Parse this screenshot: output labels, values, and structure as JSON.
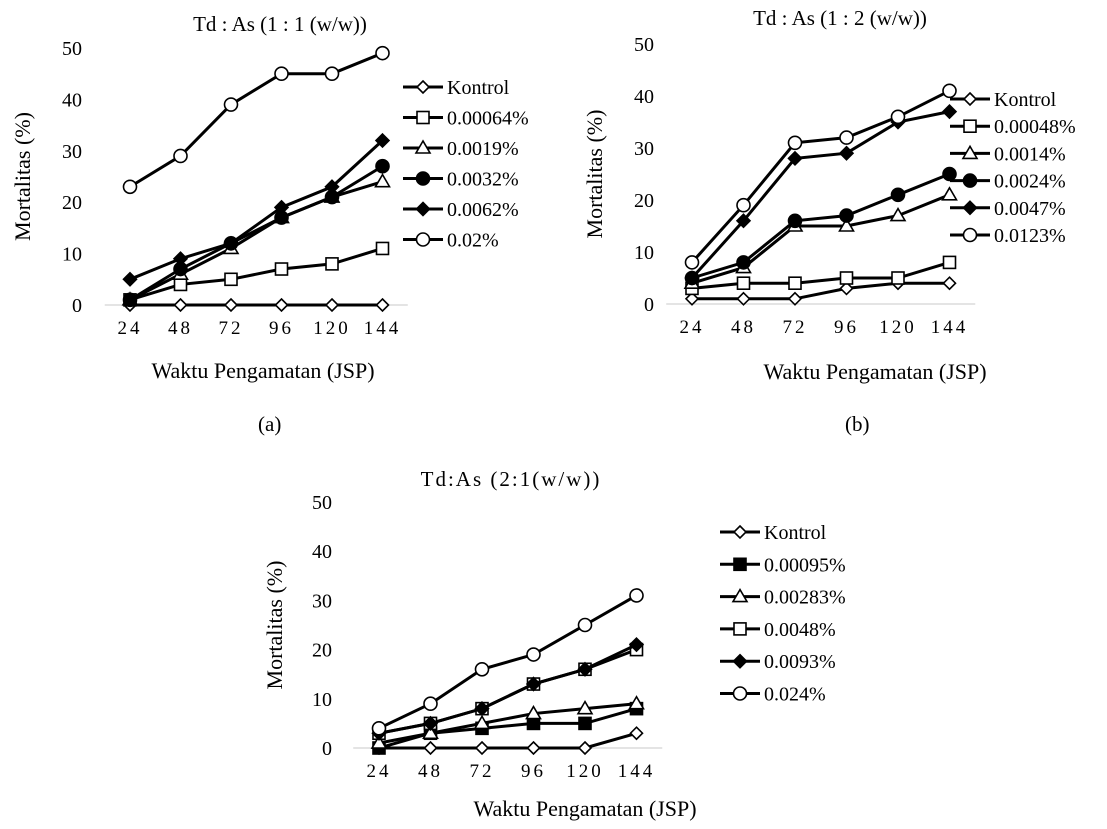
{
  "captions": [
    "(a)",
    "(b)"
  ],
  "chart_data": [
    {
      "type": "line",
      "title": "Td : As (1 : 1 (w/w))",
      "xlabel": "Waktu Pengamatan (JSP)",
      "ylabel": "Mortalitas (%)",
      "categories": [
        "24",
        "48",
        "72",
        "96",
        "120",
        "144"
      ],
      "ylim": [
        0,
        50
      ],
      "yticks": [
        0,
        10,
        20,
        30,
        40,
        50
      ],
      "grid": false,
      "legend": "right",
      "series": [
        {
          "name": "Kontrol",
          "marker": "diamond-open",
          "values": [
            0,
            0,
            0,
            0,
            0,
            0
          ]
        },
        {
          "name": "0.00064%",
          "marker": "square-open",
          "values": [
            1,
            4,
            5,
            7,
            8,
            11
          ]
        },
        {
          "name": "0.0019%",
          "marker": "triangle-open",
          "values": [
            1,
            6,
            11,
            17,
            21,
            24
          ]
        },
        {
          "name": "0.0032%",
          "marker": "circle-filled",
          "values": [
            1,
            7,
            12,
            17,
            21,
            27
          ]
        },
        {
          "name": "0.0062%",
          "marker": "diamond-filled",
          "values": [
            5,
            9,
            12,
            19,
            23,
            32
          ]
        },
        {
          "name": "0.02%",
          "marker": "circle-open",
          "values": [
            23,
            29,
            39,
            45,
            45,
            49
          ]
        }
      ]
    },
    {
      "type": "line",
      "title": "Td : As (1 : 2 (w/w))",
      "xlabel": "Waktu Pengamatan (JSP)",
      "ylabel": "Mortalitas (%)",
      "categories": [
        "24",
        "48",
        "72",
        "96",
        "120",
        "144"
      ],
      "ylim": [
        0,
        50
      ],
      "yticks": [
        0,
        10,
        20,
        30,
        40,
        50
      ],
      "grid": false,
      "legend": "right",
      "series": [
        {
          "name": "Kontrol",
          "marker": "diamond-open",
          "values": [
            1,
            1,
            1,
            3,
            4,
            4
          ]
        },
        {
          "name": "0.00048%",
          "marker": "square-open",
          "values": [
            3,
            4,
            4,
            5,
            5,
            8
          ]
        },
        {
          "name": "0.0014%",
          "marker": "triangle-open",
          "values": [
            4,
            7,
            15,
            15,
            17,
            21
          ]
        },
        {
          "name": "0.0024%",
          "marker": "circle-filled",
          "values": [
            5,
            8,
            16,
            17,
            21,
            25
          ]
        },
        {
          "name": "0.0047%",
          "marker": "diamond-filled",
          "values": [
            5,
            16,
            28,
            29,
            35,
            37
          ]
        },
        {
          "name": "0.0123%",
          "marker": "circle-open",
          "values": [
            8,
            19,
            31,
            32,
            36,
            41
          ]
        }
      ]
    },
    {
      "type": "line",
      "title": "Td:As (2:1(w/w))",
      "xlabel": "Waktu Pengamatan (JSP)",
      "ylabel": "Mortalitas (%)",
      "categories": [
        "24",
        "48",
        "72",
        "96",
        "120",
        "144"
      ],
      "ylim": [
        0,
        50
      ],
      "yticks": [
        0,
        10,
        20,
        30,
        40,
        50
      ],
      "grid": false,
      "legend": "right",
      "series": [
        {
          "name": "Kontrol",
          "marker": "diamond-open",
          "values": [
            0,
            0,
            0,
            0,
            0,
            3
          ]
        },
        {
          "name": "0.00095%",
          "marker": "square-filled",
          "values": [
            0,
            3,
            4,
            5,
            5,
            8
          ]
        },
        {
          "name": "0.00283%",
          "marker": "triangle-open",
          "values": [
            1,
            3,
            5,
            7,
            8,
            9
          ]
        },
        {
          "name": "0.0048%",
          "marker": "square-open",
          "values": [
            3,
            5,
            8,
            13,
            16,
            20
          ]
        },
        {
          "name": "0.0093%",
          "marker": "diamond-filled",
          "values": [
            3,
            5,
            8,
            13,
            16,
            21
          ]
        },
        {
          "name": "0.024%",
          "marker": "circle-open",
          "values": [
            4,
            9,
            16,
            19,
            25,
            31
          ]
        }
      ]
    }
  ]
}
